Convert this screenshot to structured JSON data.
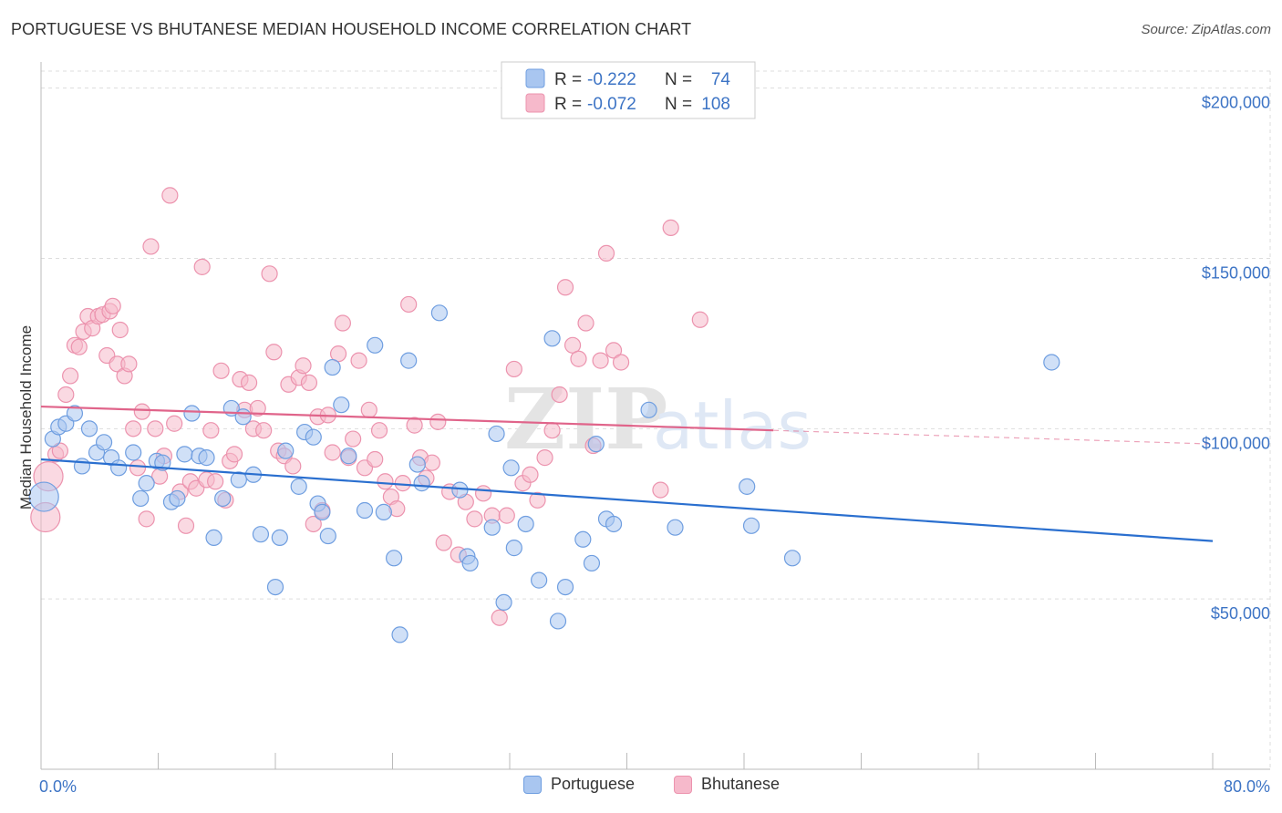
{
  "title": "PORTUGUESE VS BHUTANESE MEDIAN HOUSEHOLD INCOME CORRELATION CHART",
  "source": "Source: ZipAtlas.com",
  "watermark": {
    "zip": "ZIP",
    "atlas": "atlas"
  },
  "colors": {
    "portuguese_fill": "#a9c6f0",
    "portuguese_stroke": "#6f9ee0",
    "portuguese_line": "#2a6fcf",
    "bhutanese_fill": "#f6b9cb",
    "bhutanese_stroke": "#ec93ae",
    "bhutanese_line": "#e0648a",
    "axis_text": "#3d74c5",
    "grid": "#dddddd"
  },
  "legend": {
    "r_label": "R =",
    "n_label": "N =",
    "portuguese_r": "-0.222",
    "portuguese_n": "74",
    "bhutanese_r": "-0.072",
    "bhutanese_n": "108"
  },
  "chart_data": {
    "type": "scatter",
    "title": "PORTUGUESE VS BHUTANESE MEDIAN HOUSEHOLD INCOME CORRELATION CHART",
    "xlabel": "",
    "ylabel": "Median Household Income",
    "xlim": [
      0,
      80
    ],
    "ylim": [
      0,
      205000
    ],
    "x_tick_labels": [
      "0.0%",
      "80.0%"
    ],
    "y_ticks": [
      50000,
      100000,
      150000,
      200000
    ],
    "y_tick_labels": [
      "$50,000",
      "$100,000",
      "$150,000",
      "$200,000"
    ],
    "grid": true,
    "legend_position": "top-center",
    "series": [
      {
        "name": "Portuguese",
        "r": -0.222,
        "n": 74,
        "trend": {
          "x": [
            0,
            80
          ],
          "y": [
            91000,
            67000
          ]
        },
        "points": [
          [
            0.2,
            80000,
            "big"
          ],
          [
            0.8,
            97000
          ],
          [
            1.2,
            100500
          ],
          [
            1.7,
            101500
          ],
          [
            2.3,
            104500
          ],
          [
            2.8,
            89000
          ],
          [
            3.3,
            100000
          ],
          [
            3.8,
            93000
          ],
          [
            4.3,
            96000
          ],
          [
            4.8,
            91500
          ],
          [
            5.3,
            88500
          ],
          [
            6.3,
            93000
          ],
          [
            6.8,
            79500
          ],
          [
            7.2,
            84000
          ],
          [
            7.9,
            90500
          ],
          [
            8.3,
            90000
          ],
          [
            8.9,
            78500
          ],
          [
            9.3,
            79500
          ],
          [
            9.8,
            92500
          ],
          [
            10.3,
            104500
          ],
          [
            10.8,
            92000
          ],
          [
            11.3,
            91500
          ],
          [
            11.8,
            68000
          ],
          [
            12.4,
            79500
          ],
          [
            13.0,
            106000
          ],
          [
            13.5,
            85000
          ],
          [
            13.8,
            103500
          ],
          [
            14.5,
            86500
          ],
          [
            15.0,
            69000
          ],
          [
            16.0,
            53500
          ],
          [
            16.3,
            68000
          ],
          [
            16.7,
            93500
          ],
          [
            17.6,
            83000
          ],
          [
            18.0,
            99000
          ],
          [
            18.6,
            97500
          ],
          [
            18.9,
            78000
          ],
          [
            19.2,
            75500
          ],
          [
            19.6,
            68500
          ],
          [
            19.9,
            118000
          ],
          [
            20.5,
            107000
          ],
          [
            21.0,
            92000
          ],
          [
            22.1,
            76000
          ],
          [
            22.8,
            124500
          ],
          [
            23.4,
            75500
          ],
          [
            24.1,
            62000
          ],
          [
            24.5,
            39500
          ],
          [
            25.1,
            120000
          ],
          [
            25.7,
            89500
          ],
          [
            26.0,
            84000
          ],
          [
            27.2,
            134000
          ],
          [
            28.6,
            82000
          ],
          [
            29.1,
            62500
          ],
          [
            29.3,
            60500
          ],
          [
            30.8,
            71000
          ],
          [
            31.1,
            98500
          ],
          [
            31.6,
            49000
          ],
          [
            32.1,
            88500
          ],
          [
            32.3,
            65000
          ],
          [
            33.1,
            72000
          ],
          [
            34.0,
            55500
          ],
          [
            34.9,
            126500
          ],
          [
            35.3,
            43500
          ],
          [
            35.8,
            53500
          ],
          [
            37.0,
            67500
          ],
          [
            37.6,
            60500
          ],
          [
            37.9,
            95500
          ],
          [
            38.6,
            73500
          ],
          [
            39.1,
            72000
          ],
          [
            41.5,
            105500
          ],
          [
            43.3,
            71000
          ],
          [
            48.2,
            83000
          ],
          [
            48.5,
            71500
          ],
          [
            51.3,
            62000
          ],
          [
            69.0,
            119500
          ]
        ]
      },
      {
        "name": "Bhutanese",
        "r": -0.072,
        "n": 108,
        "trend": {
          "x": [
            0,
            50
          ],
          "y": [
            106500,
            99500
          ]
        },
        "trend_dashed": {
          "x": [
            50,
            80
          ],
          "y": [
            99500,
            95500
          ]
        },
        "points": [
          [
            0.3,
            74000,
            "big"
          ],
          [
            0.5,
            86000,
            "big"
          ],
          [
            1.0,
            92500
          ],
          [
            1.3,
            93500
          ],
          [
            1.7,
            110000
          ],
          [
            2.0,
            115500
          ],
          [
            2.3,
            124500
          ],
          [
            2.6,
            124000
          ],
          [
            2.9,
            128500
          ],
          [
            3.2,
            133000
          ],
          [
            3.5,
            129500
          ],
          [
            3.9,
            133000
          ],
          [
            4.2,
            133500
          ],
          [
            4.5,
            121500
          ],
          [
            4.7,
            134500
          ],
          [
            4.9,
            136000
          ],
          [
            5.2,
            119000
          ],
          [
            5.4,
            129000
          ],
          [
            5.7,
            115500
          ],
          [
            6.0,
            119000
          ],
          [
            6.3,
            100000
          ],
          [
            6.6,
            88500
          ],
          [
            6.9,
            105000
          ],
          [
            7.2,
            73500
          ],
          [
            7.5,
            153500
          ],
          [
            7.8,
            100000
          ],
          [
            8.1,
            86000
          ],
          [
            8.4,
            92000
          ],
          [
            8.8,
            168500
          ],
          [
            9.1,
            101500
          ],
          [
            9.5,
            81500
          ],
          [
            9.9,
            71500
          ],
          [
            10.2,
            84500
          ],
          [
            10.6,
            82500
          ],
          [
            11.0,
            147500
          ],
          [
            11.3,
            85000
          ],
          [
            11.6,
            99500
          ],
          [
            11.9,
            84500
          ],
          [
            12.3,
            117000
          ],
          [
            12.6,
            79000
          ],
          [
            12.9,
            90500
          ],
          [
            13.2,
            92500
          ],
          [
            13.6,
            114500
          ],
          [
            13.9,
            105500
          ],
          [
            14.2,
            113500
          ],
          [
            14.5,
            100000
          ],
          [
            14.8,
            106000
          ],
          [
            15.2,
            99500
          ],
          [
            15.6,
            145500
          ],
          [
            15.9,
            122500
          ],
          [
            16.2,
            93500
          ],
          [
            16.6,
            92000
          ],
          [
            16.9,
            113000
          ],
          [
            17.2,
            89000
          ],
          [
            17.6,
            115000
          ],
          [
            17.9,
            118500
          ],
          [
            18.3,
            113500
          ],
          [
            18.6,
            72000
          ],
          [
            18.9,
            103500
          ],
          [
            19.2,
            76000
          ],
          [
            19.6,
            104000
          ],
          [
            19.9,
            93000
          ],
          [
            20.3,
            122000
          ],
          [
            20.6,
            131000
          ],
          [
            21.0,
            91500
          ],
          [
            21.3,
            97000
          ],
          [
            21.7,
            120000
          ],
          [
            22.1,
            88500
          ],
          [
            22.4,
            105500
          ],
          [
            22.8,
            91000
          ],
          [
            23.1,
            99500
          ],
          [
            23.5,
            84500
          ],
          [
            23.9,
            80000
          ],
          [
            24.3,
            76500
          ],
          [
            24.7,
            84000
          ],
          [
            25.1,
            136500
          ],
          [
            25.5,
            101000
          ],
          [
            25.9,
            91500
          ],
          [
            26.3,
            85500
          ],
          [
            26.7,
            90000
          ],
          [
            27.1,
            102000
          ],
          [
            27.5,
            66500
          ],
          [
            27.9,
            81500
          ],
          [
            28.5,
            63000
          ],
          [
            29.0,
            78500
          ],
          [
            29.6,
            73500
          ],
          [
            30.2,
            81000
          ],
          [
            30.8,
            74500
          ],
          [
            31.3,
            44500
          ],
          [
            31.8,
            74500
          ],
          [
            32.3,
            117500
          ],
          [
            32.9,
            84000
          ],
          [
            33.4,
            86500
          ],
          [
            33.9,
            79000
          ],
          [
            34.4,
            91500
          ],
          [
            34.9,
            99500
          ],
          [
            35.4,
            110000
          ],
          [
            35.8,
            141500
          ],
          [
            36.3,
            124500
          ],
          [
            36.7,
            120500
          ],
          [
            37.2,
            131000
          ],
          [
            37.7,
            95000
          ],
          [
            38.2,
            120000
          ],
          [
            38.6,
            151500
          ],
          [
            39.1,
            123000
          ],
          [
            39.6,
            119500
          ],
          [
            42.3,
            82000
          ],
          [
            43.0,
            159000
          ],
          [
            45.0,
            132000
          ]
        ]
      }
    ]
  }
}
